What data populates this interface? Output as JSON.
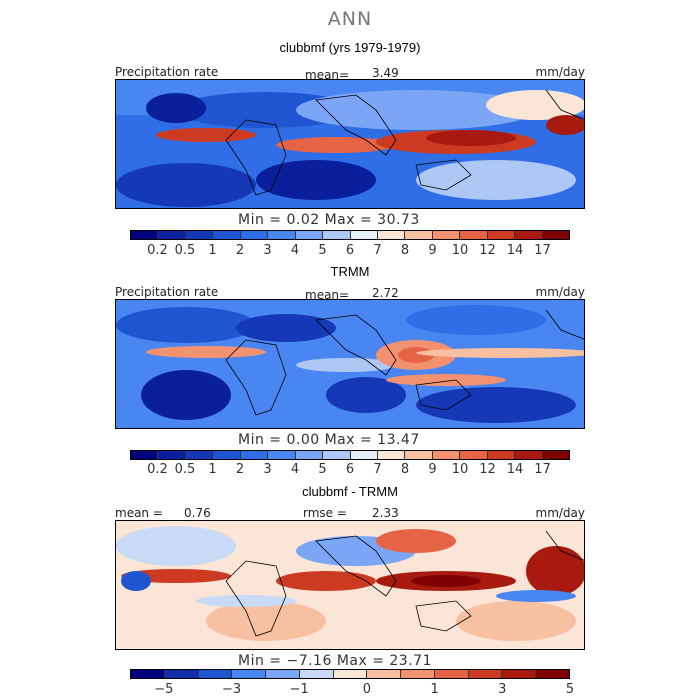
{
  "figure_title": "ANN",
  "levels_abs": [
    "0.2",
    "0.5",
    "1",
    "2",
    "3",
    "4",
    "5",
    "6",
    "7",
    "8",
    "9",
    "10",
    "12",
    "14",
    "17"
  ],
  "levels_diff": [
    "−5",
    "−3",
    "−1",
    "0",
    "1",
    "3",
    "5"
  ],
  "colors_abs": [
    "#00007f",
    "#0a1f9b",
    "#1538b7",
    "#1f55d1",
    "#2f6ee6",
    "#4a86f2",
    "#7aa6f5",
    "#aec8f6",
    "#e6eef8",
    "#fbe5d6",
    "#f7c0a0",
    "#f29270",
    "#e56446",
    "#cc3a22",
    "#a81a0f",
    "#7f0000"
  ],
  "colors_diff": [
    "#00007f",
    "#0f2ea8",
    "#1f55d1",
    "#4a86f2",
    "#7aa6f5",
    "#c8daf5",
    "#fbe5d6",
    "#f7c0a0",
    "#f29270",
    "#e56446",
    "#cc3a22",
    "#a81a0f",
    "#7f0000"
  ],
  "panels": [
    {
      "title": "clubbmf (yrs 1979-1979)",
      "left_label": "Precipitation rate",
      "stat_label": "mean=",
      "stat_value": "3.49",
      "units": "mm/day",
      "minmax": "Min =    0.02  Max =   30.73"
    },
    {
      "title": "TRMM",
      "left_label": "Precipitation rate",
      "stat_label": "mean=",
      "stat_value": "2.72",
      "units": "mm/day",
      "minmax": "Min =    0.00  Max =   13.47"
    },
    {
      "title": "clubbmf - TRMM",
      "left_label": "mean =",
      "left_value": "0.76",
      "stat_label": "rmse =",
      "stat_value": "2.33",
      "units": "mm/day",
      "minmax": "Min =  −7.16  Max =   23.71"
    }
  ],
  "chart_data": {
    "type": "heatmap",
    "title": "ANN",
    "panels": [
      "clubbmf (yrs 1979-1979)",
      "TRMM",
      "clubbmf - TRMM"
    ],
    "variable": "Precipitation rate",
    "units": "mm/day",
    "stats": [
      {
        "mean": 3.49,
        "min": 0.02,
        "max": 30.73
      },
      {
        "mean": 2.72,
        "min": 0.0,
        "max": 13.47
      },
      {
        "mean": 0.76,
        "rmse": 2.33,
        "min": -7.16,
        "max": 23.71
      }
    ],
    "contour_levels_abs": [
      0.2,
      0.5,
      1,
      2,
      3,
      4,
      5,
      6,
      7,
      8,
      9,
      10,
      12,
      14,
      17
    ],
    "contour_levels_diff": [
      -5,
      -3,
      -1,
      0,
      1,
      3,
      5
    ]
  }
}
